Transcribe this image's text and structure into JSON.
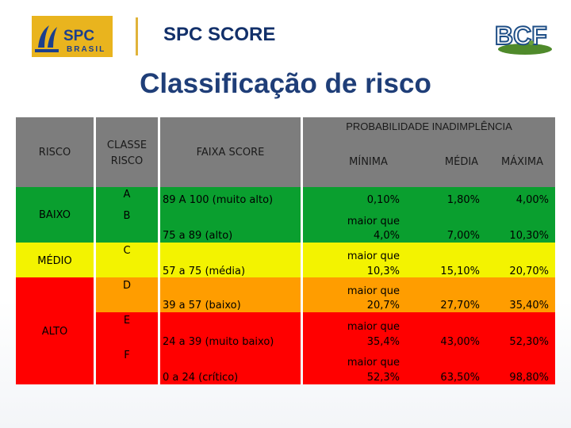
{
  "header": {
    "brand_title": "SPC SCORE",
    "spc_logo_main": "SPC",
    "spc_logo_sub": "BRASIL",
    "bcf_logo": "BCF"
  },
  "slide_title": "Classificação de risco",
  "table": {
    "headers": {
      "risco": "RISCO",
      "classe_line1": "CLASSE",
      "classe_line2": "RISCO",
      "faixa": "FAIXA SCORE",
      "prob_group": "PROBABILIDADE INADIMPLÊNCIA",
      "minima": "MÍNIMA",
      "media": "MÉDIA",
      "maxima": "MÁXIMA"
    },
    "risk_levels": [
      "BAIXO",
      "MÉDIO",
      "ALTO"
    ],
    "classes": [
      "A",
      "B",
      "C",
      "D",
      "E",
      "F"
    ],
    "rows": [
      {
        "faixa": "89 A 100 (muito alto)",
        "min1": "0,10%",
        "min2": "",
        "media": "1,80%",
        "maxima": "4,00%"
      },
      {
        "faixa": "75 a 89 (alto)",
        "min1": "maior que",
        "min2": "4,0%",
        "media": "7,00%",
        "maxima": "10,30%"
      },
      {
        "faixa": "57 a 75 (média)",
        "min1": "maior que",
        "min2": "10,3%",
        "media": "15,10%",
        "maxima": "20,70%"
      },
      {
        "faixa": "39 a 57 (baixo)",
        "min1": "maior que",
        "min2": "20,7%",
        "media": "27,70%",
        "maxima": "35,40%"
      },
      {
        "faixa": "24 a 39 (muito baixo)",
        "min1": "maior que",
        "min2": "35,4%",
        "media": "43,00%",
        "maxima": "52,30%"
      },
      {
        "faixa": "0 a 24 (crítico)",
        "min1": "maior que",
        "min2": "52,3%",
        "media": "63,50%",
        "maxima": "98,80%"
      }
    ]
  },
  "colors": {
    "green": "#0a9f2f",
    "yellow": "#f3f300",
    "orange": "#ff9d00",
    "red": "#ff0000",
    "header_grey": "#7d7d7d",
    "title_blue": "#1f3e78"
  }
}
